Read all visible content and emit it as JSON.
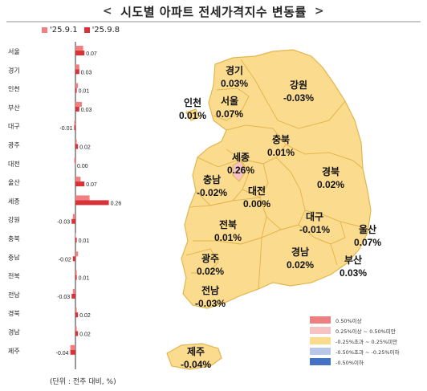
{
  "header": {
    "title": "시도별 아파트 전세가격지수 변동률",
    "prev_icon": "chevron-left-icon",
    "next_icon": "chevron-right-icon"
  },
  "legend": {
    "prev_label": "'25.9.1",
    "curr_label": "'25.9.8",
    "prev_color": "#f08080",
    "curr_color": "#d9333a"
  },
  "unit_note": "(단위 : 전주 대비, %)",
  "scale_legend": [
    {
      "label": "0.50%이상",
      "color": "#ec7f80"
    },
    {
      "label": "0.25%이상 ~ 0.50%미만",
      "color": "#f6c2c3"
    },
    {
      "label": "-0.25%초과 ~ 0.25%미만",
      "color": "#fbdc8f"
    },
    {
      "label": "-0.50%초과 ~ -0.25%이하",
      "color": "#b9c8e6"
    },
    {
      "label": "-0.50%이하",
      "color": "#4472c4"
    }
  ],
  "chart_data": {
    "type": "bar",
    "categories": [
      "서울",
      "경기",
      "인천",
      "부산",
      "대구",
      "광주",
      "대전",
      "울산",
      "세종",
      "강원",
      "충북",
      "충남",
      "전북",
      "전남",
      "경북",
      "경남",
      "제주"
    ],
    "series": [
      {
        "name": "'25.9.1",
        "values": [
          0.06,
          0.03,
          0.02,
          0.05,
          -0.01,
          0.01,
          -0.01,
          0.04,
          0.11,
          -0.02,
          0.0,
          0.02,
          0.01,
          -0.02,
          0.01,
          0.01,
          -0.04
        ]
      },
      {
        "name": "'25.9.8",
        "values": [
          0.07,
          0.03,
          0.01,
          0.03,
          -0.01,
          0.02,
          0.0,
          0.07,
          0.26,
          -0.03,
          0.01,
          -0.02,
          0.01,
          -0.03,
          0.02,
          0.02,
          -0.04
        ]
      }
    ],
    "value_labels": [
      "0.07",
      "0.03",
      "0.01",
      "0.03",
      "-0.01",
      "0.02",
      "0.00",
      "0.07",
      "0.26",
      "-0.03",
      "0.01",
      "-0.02",
      "0.01",
      "-0.03",
      "0.02",
      "0.02",
      "-0.04"
    ]
  },
  "map_regions": [
    {
      "name": "경기",
      "value": "0.03%"
    },
    {
      "name": "강원",
      "value": "-0.03%"
    },
    {
      "name": "인천",
      "value": "0.01%"
    },
    {
      "name": "서울",
      "value": "0.07%"
    },
    {
      "name": "충북",
      "value": "0.01%"
    },
    {
      "name": "세종",
      "value": "0.26%"
    },
    {
      "name": "충남",
      "value": "-0.02%"
    },
    {
      "name": "대전",
      "value": "0.00%"
    },
    {
      "name": "경북",
      "value": "0.02%"
    },
    {
      "name": "대구",
      "value": "-0.01%"
    },
    {
      "name": "전북",
      "value": "0.01%"
    },
    {
      "name": "울산",
      "value": "0.07%"
    },
    {
      "name": "경남",
      "value": "0.02%"
    },
    {
      "name": "부산",
      "value": "0.03%"
    },
    {
      "name": "광주",
      "value": "0.02%"
    },
    {
      "name": "전남",
      "value": "-0.03%"
    },
    {
      "name": "제주",
      "value": "-0.04%"
    }
  ],
  "colors": {
    "map_fill": "#fbdc8f",
    "map_stroke": "#e2b64e",
    "sejong_fill": "#f6c2c3",
    "axis": "#333333"
  }
}
